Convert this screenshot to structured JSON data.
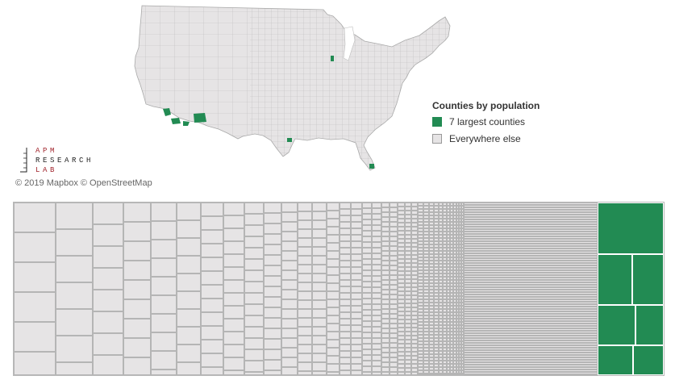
{
  "legend": {
    "title": "Counties by population",
    "items": [
      {
        "label": "7 largest counties",
        "color": "#228b53"
      },
      {
        "label": "Everywhere else",
        "color": "#e6e4e5"
      }
    ]
  },
  "logo": {
    "line1": "APM",
    "line2": "RESEARCH",
    "line3": "LAB"
  },
  "credit": "© 2019 Mapbox © OpenStreetMap",
  "colors": {
    "highlight": "#228b53",
    "land": "#e6e4e5",
    "county_border": "#bdbdbd",
    "logo_red": "#a1232b",
    "logo_dark": "#222222"
  }
}
